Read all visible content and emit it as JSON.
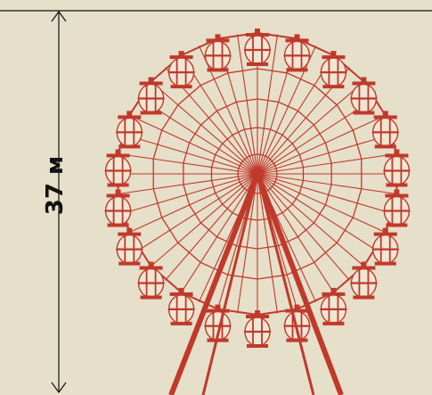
{
  "height_label": "37 м",
  "colors": {
    "background": "#e6dfc9",
    "wheel": "#c0392b",
    "cabin_fill": "#efe6d3",
    "dimension_line": "#111111"
  },
  "wheel": {
    "cabin_count": 22,
    "spoke_count": 44,
    "ring_count": 5
  }
}
